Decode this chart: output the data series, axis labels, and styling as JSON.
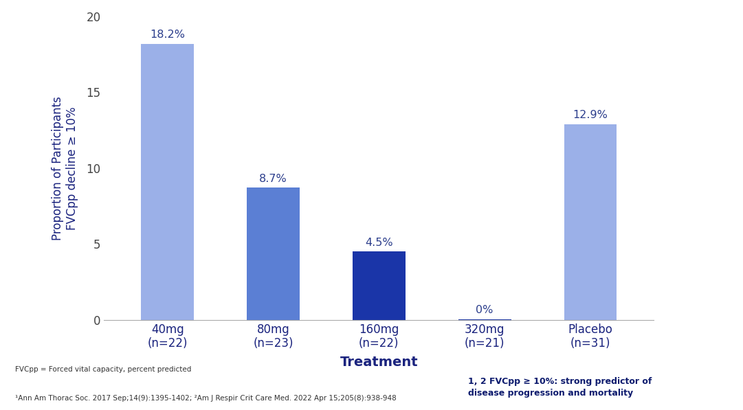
{
  "categories": [
    "40mg\n(n=22)",
    "80mg\n(n=23)",
    "160mg\n(n=22)",
    "320mg\n(n=21)",
    "Placebo\n(n=31)"
  ],
  "values": [
    18.2,
    8.7,
    4.5,
    0.05,
    12.9
  ],
  "display_values": [
    "18.2%",
    "8.7%",
    "4.5%",
    "0%",
    "12.9%"
  ],
  "bar_color_40mg": "#9bb0e8",
  "bar_color_80mg": "#5b7fd4",
  "bar_color_160mg": "#1a35a8",
  "bar_color_320mg": "#1a35a8",
  "bar_color_placebo": "#9bb0e8",
  "value_label_colors": [
    "#2c3e8c",
    "#2c3e8c",
    "#2c3e8c",
    "#2c3e8c",
    "#2c3e8c"
  ],
  "ylabel_line1": "Proportion of Participants",
  "ylabel_line2": "FVCpp decline ≥ 10%",
  "xlabel": "Treatment",
  "ylim": [
    0,
    20
  ],
  "yticks": [
    0,
    5,
    10,
    15,
    20
  ],
  "footnote_left_1": "FVCpp = Forced vital capacity, percent predicted",
  "footnote_left_2": "¹Ann Am Thorac Soc. 2017 Sep;14(9):1395-1402; ²Am J Respir Crit Care Med. 2022 Apr 15;205(8):938-948",
  "footnote_right": "1, 2 FVCpp ≥ 10%: strong predictor of\ndisease progression and mortality",
  "xlabel_color": "#1a237e",
  "ylabel_color": "#1a237e",
  "axis_label_color": "#555555",
  "background_color": "#ffffff",
  "bar_width": 0.5
}
